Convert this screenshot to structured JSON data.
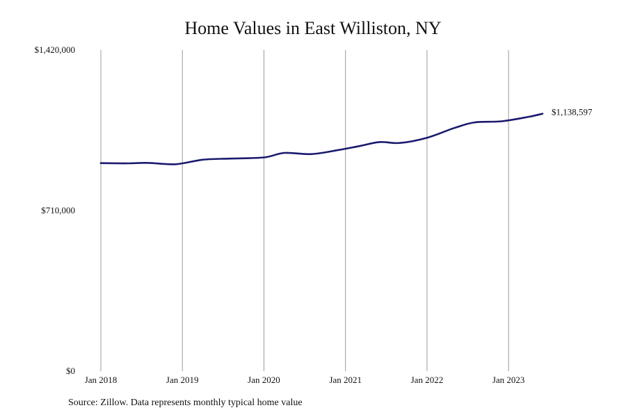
{
  "title": "Home Values in East Williston, NY",
  "source": "Source: Zillow. Data represents monthly typical home value",
  "chart_data": {
    "type": "line",
    "title": "Home Values in East Williston, NY",
    "xlabel": "",
    "ylabel": "",
    "ylim": [
      0,
      1420000
    ],
    "xlim": [
      "2018-01",
      "2023-06"
    ],
    "y_ticks": [
      0,
      710000,
      1420000
    ],
    "y_tick_labels": [
      "$0",
      "$710,000",
      "$1,420,000"
    ],
    "x_ticks": [
      "2018-01",
      "2019-01",
      "2020-01",
      "2021-01",
      "2022-01",
      "2023-01"
    ],
    "x_tick_labels": [
      "Jan 2018",
      "Jan 2019",
      "Jan 2020",
      "Jan 2021",
      "Jan 2022",
      "Jan 2023"
    ],
    "grid": "vertical",
    "legend": "none",
    "color": "#1a1a6e",
    "series": [
      {
        "end_label": "$1,138,597",
        "points": [
          [
            "2018-01",
            920000
          ],
          [
            "2018-05",
            919000
          ],
          [
            "2018-08",
            921000
          ],
          [
            "2018-12",
            915000
          ],
          [
            "2019-04",
            935000
          ],
          [
            "2019-08",
            940000
          ],
          [
            "2020-01",
            945000
          ],
          [
            "2020-04",
            965000
          ],
          [
            "2020-08",
            960000
          ],
          [
            "2020-12",
            978000
          ],
          [
            "2021-03",
            995000
          ],
          [
            "2021-06",
            1013000
          ],
          [
            "2021-09",
            1009000
          ],
          [
            "2022-01",
            1032000
          ],
          [
            "2022-05",
            1075000
          ],
          [
            "2022-08",
            1100000
          ],
          [
            "2022-12",
            1105000
          ],
          [
            "2023-04",
            1125000
          ],
          [
            "2023-06",
            1138597
          ]
        ]
      }
    ]
  }
}
